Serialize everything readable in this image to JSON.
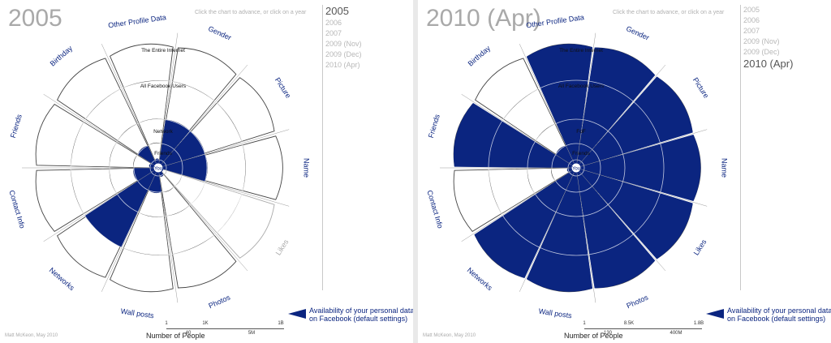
{
  "colors": {
    "filled": "#0b2580",
    "unfilled": "#ffffff",
    "label": "#0b2580",
    "label_inactive": "#a8a8a8",
    "title": "#a9a9a9"
  },
  "hint": "Click the chart to advance, or click on a year",
  "years": [
    "2005",
    "2006",
    "2007",
    "2009 (Nov)",
    "2009 (Dec)",
    "2010 (Apr)"
  ],
  "legend": {
    "label": "Availability of your personal data on Facebook (default settings)"
  },
  "scale": {
    "title": "Number of People",
    "left": {
      "top_ticks": [
        "1",
        "1K",
        "1B"
      ],
      "bottom_ticks": [
        "40",
        "5M"
      ]
    },
    "right": {
      "top_ticks": [
        "1",
        "8.5K",
        "1.8B"
      ],
      "bottom_ticks": [
        "130",
        "400M"
      ]
    }
  },
  "credit": "Matt McKeon, May 2010",
  "chart_data": [
    {
      "type": "rose",
      "title": "2005",
      "active_year": "2005",
      "categories": [
        "Name",
        "Likes",
        "Photos",
        "Wall posts",
        "Networks",
        "Contact Info",
        "Friends",
        "Birthday",
        "Other Profile Data",
        "Gender",
        "Picture"
      ],
      "category_active": [
        true,
        false,
        true,
        true,
        true,
        true,
        true,
        true,
        true,
        true,
        true
      ],
      "audience_levels": [
        "You",
        "Friends",
        "Network",
        "All Facebook Users",
        "The Entire Internet"
      ],
      "filled_level": [
        2,
        -1,
        0,
        1,
        3,
        1,
        0,
        1,
        0,
        2,
        2
      ]
    },
    {
      "type": "rose",
      "title": "2010 (Apr)",
      "active_year": "2010 (Apr)",
      "categories": [
        "Name",
        "Likes",
        "Photos",
        "Wall posts",
        "Networks",
        "Contact Info",
        "Friends",
        "Birthday",
        "Other Profile Data",
        "Gender",
        "Picture"
      ],
      "category_active": [
        true,
        true,
        true,
        true,
        true,
        true,
        true,
        true,
        true,
        true,
        true
      ],
      "audience_levels": [
        "You",
        "Friends",
        "FoF",
        "All Facebook Users",
        "The Entire Internet"
      ],
      "filled_level": [
        4,
        4,
        4,
        4,
        4,
        0,
        4,
        1,
        4,
        4,
        4
      ]
    }
  ]
}
